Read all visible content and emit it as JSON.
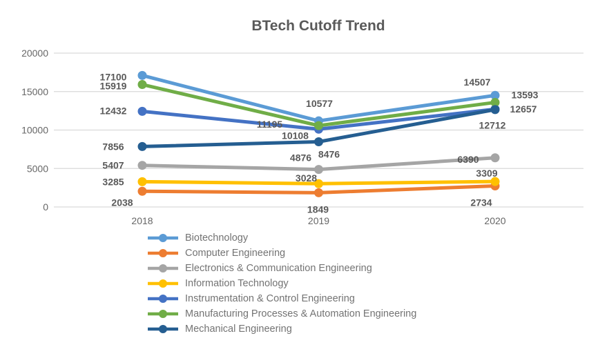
{
  "chart_data": {
    "type": "line",
    "title": "BTech Cutoff Trend",
    "categories": [
      "2018",
      "2019",
      "2020"
    ],
    "yticks": [
      0,
      5000,
      10000,
      15000,
      20000
    ],
    "ylim": [
      0,
      20000
    ],
    "grid": true,
    "data_labels": true,
    "legend_position": "bottom-left",
    "gridline_color": "#d9d9d9",
    "series": [
      {
        "name": "Biotechnology",
        "color": "#5B9BD5",
        "values": [
          17100,
          11195,
          14507
        ],
        "label_offset": [
          [
            -42,
            2
          ],
          [
            -71,
            5
          ],
          [
            -26,
            -19
          ]
        ]
      },
      {
        "name": "Computer Engineering",
        "color": "#ED7D31",
        "values": [
          2038,
          1849,
          2734
        ],
        "label_offset": [
          [
            -29,
            16
          ],
          [
            -1,
            24
          ],
          [
            -20,
            24
          ]
        ]
      },
      {
        "name": "Electronics & Communication Engineering",
        "color": "#A5A5A5",
        "values": [
          5407,
          4876,
          6390
        ],
        "label_offset": [
          [
            -42,
            0
          ],
          [
            -26,
            -17
          ],
          [
            -39,
            2
          ]
        ]
      },
      {
        "name": "Information Technology",
        "color": "#FFC000",
        "values": [
          3285,
          3028,
          3309
        ],
        "label_offset": [
          [
            -42,
            0
          ],
          [
            -18,
            -8
          ],
          [
            -12,
            -12
          ]
        ]
      },
      {
        "name": "Instrumentation & Control Engineering",
        "color": "#4472C4",
        "values": [
          12432,
          10108,
          12712
        ],
        "label_offset": [
          [
            -42,
            -1
          ],
          [
            -34,
            9
          ],
          [
            -4,
            23
          ]
        ]
      },
      {
        "name": "Manufacturing Processes & Automation Engineering",
        "color": "#70AD47",
        "values": [
          15919,
          10577,
          13593
        ],
        "label_offset": [
          [
            -42,
            2
          ],
          [
            1,
            -32
          ],
          [
            43,
            -11
          ]
        ]
      },
      {
        "name": "Mechanical Engineering",
        "color": "#255E91",
        "values": [
          7856,
          8476,
          12657
        ],
        "label_offset": [
          [
            -42,
            0
          ],
          [
            15,
            18
          ],
          [
            41,
            -1
          ]
        ]
      }
    ]
  }
}
